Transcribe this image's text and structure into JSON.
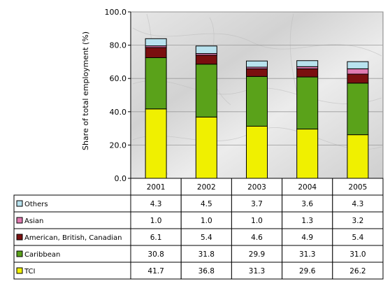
{
  "chart_data": {
    "type": "bar",
    "stacked": true,
    "categories": [
      "2001",
      "2002",
      "2003",
      "2004",
      "2005"
    ],
    "ylabel": "Share of total employment (%)",
    "ylim": [
      0,
      100
    ],
    "yticks": [
      "0.0",
      "20.0",
      "40.0",
      "60.0",
      "80.0",
      "100.0"
    ],
    "grid": true,
    "legend_placement": "left, in data table",
    "series": [
      {
        "name": "TCI",
        "values": [
          41.7,
          36.8,
          31.3,
          29.6,
          26.2
        ],
        "color": "#f0f000",
        "value_labels": [
          "41.7",
          "36.8",
          "31.3",
          "29.6",
          "26.2"
        ]
      },
      {
        "name": "Caribbean",
        "values": [
          30.8,
          31.8,
          29.9,
          31.3,
          31.0
        ],
        "color": "#5aa21a",
        "value_labels": [
          "30.8",
          "31.8",
          "29.9",
          "31.3",
          "31.0"
        ]
      },
      {
        "name": "American, British, Canadian",
        "values": [
          6.1,
          5.4,
          4.6,
          4.9,
          5.4
        ],
        "color": "#7a0f0f",
        "value_labels": [
          "6.1",
          "5.4",
          "4.6",
          "4.9",
          "5.4"
        ]
      },
      {
        "name": "Asian",
        "values": [
          1.0,
          1.0,
          1.0,
          1.3,
          3.2
        ],
        "color": "#e07ab0",
        "value_labels": [
          "1.0",
          "1.0",
          "1.0",
          "1.3",
          "3.2"
        ]
      },
      {
        "name": "Others",
        "values": [
          4.3,
          4.5,
          3.7,
          3.6,
          4.3
        ],
        "color": "#b8e2ee",
        "value_labels": [
          "4.3",
          "4.5",
          "3.7",
          "3.6",
          "4.3"
        ]
      }
    ]
  }
}
